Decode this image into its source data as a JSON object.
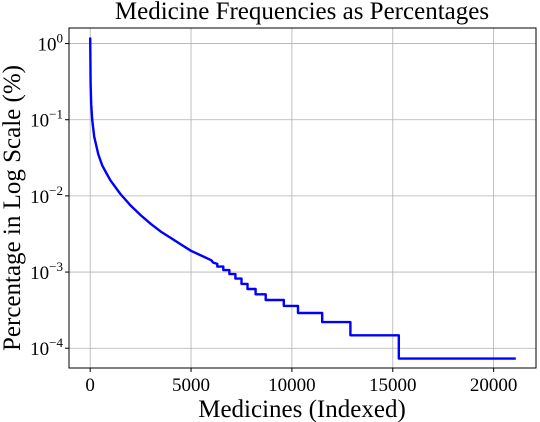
{
  "chart_data": {
    "type": "line",
    "title": "Medicine Frequencies as Percentages",
    "xlabel": "Medicines (Indexed)",
    "ylabel": "Percentage in Log Scale (%)",
    "xscale": "linear",
    "yscale": "log",
    "xlim": [
      -1050,
      22100
    ],
    "ylim": [
      5.5e-05,
      1.6
    ],
    "grid": true,
    "xticks": [
      {
        "value": 0,
        "label": "0"
      },
      {
        "value": 5000,
        "label": "5000"
      },
      {
        "value": 10000,
        "label": "10000"
      },
      {
        "value": 15000,
        "label": "15000"
      },
      {
        "value": 20000,
        "label": "20000"
      }
    ],
    "yticks": [
      {
        "value": 1,
        "base": "10",
        "exp": "0"
      },
      {
        "value": 0.1,
        "base": "10",
        "exp": "−1"
      },
      {
        "value": 0.01,
        "base": "10",
        "exp": "−2"
      },
      {
        "value": 0.001,
        "base": "10",
        "exp": "−3"
      },
      {
        "value": 0.0001,
        "base": "10",
        "exp": "−4"
      }
    ],
    "series": [
      {
        "color": "#0000ff",
        "x": [
          0,
          20,
          50,
          100,
          200,
          400,
          600,
          800,
          1000,
          1500,
          2000,
          2500,
          3000,
          3500,
          4000,
          4500,
          5000,
          5500,
          6000,
          6100,
          6300,
          6300,
          6600,
          6600,
          6900,
          6900,
          7200,
          7200,
          7500,
          7500,
          7800,
          7800,
          8200,
          8200,
          8700,
          8700,
          9600,
          9600,
          10300,
          10300,
          11500,
          11500,
          12900,
          12900,
          15300,
          15300,
          21100
        ],
        "y": [
          1.2,
          0.3,
          0.16,
          0.1,
          0.06,
          0.035,
          0.025,
          0.02,
          0.016,
          0.0106,
          0.0075,
          0.0056,
          0.0043,
          0.0034,
          0.0028,
          0.0023,
          0.0019,
          0.00165,
          0.00143,
          0.00133,
          0.00128,
          0.00118,
          0.00118,
          0.00106,
          0.00106,
          0.00094,
          0.00094,
          0.00082,
          0.00082,
          0.0007,
          0.0007,
          0.0006,
          0.0006,
          0.00051,
          0.00051,
          0.00043,
          0.00043,
          0.00036,
          0.00036,
          0.00029,
          0.00029,
          0.00022,
          0.00022,
          0.000148,
          0.000148,
          7.3e-05,
          7.3e-05
        ]
      }
    ]
  }
}
